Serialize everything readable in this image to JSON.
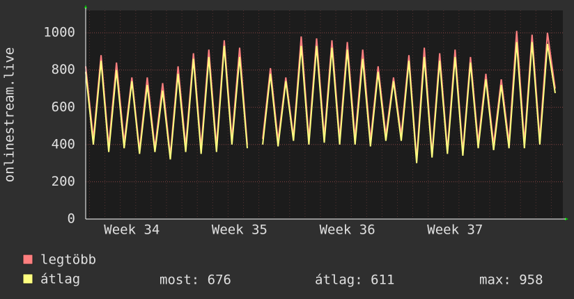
{
  "chart_data": {
    "type": "line",
    "y_label": "onlinestream.live",
    "categories": [
      null,
      null,
      null,
      null,
      null,
      null,
      "Week 34",
      null,
      null,
      null,
      null,
      null,
      null,
      null,
      null,
      null,
      null,
      null,
      null,
      null,
      "Week 35",
      null,
      null,
      null,
      null,
      null,
      null,
      null,
      null,
      null,
      null,
      null,
      null,
      null,
      "Week 36",
      null,
      null,
      null,
      null,
      null,
      null,
      null,
      null,
      null,
      null,
      null,
      null,
      null,
      "Week 37",
      null,
      null,
      null,
      null,
      null,
      null,
      null,
      null,
      null,
      null,
      null,
      null,
      null
    ],
    "series": [
      {
        "name": "legtöbb",
        "color": "#ff7f7f",
        "values": [
          820,
          430,
          880,
          390,
          840,
          410,
          760,
          370,
          760,
          380,
          730,
          340,
          820,
          390,
          890,
          380,
          910,
          390,
          960,
          430,
          920,
          400,
          null,
          430,
          810,
          420,
          760,
          440,
          980,
          430,
          970,
          440,
          960,
          430,
          950,
          430,
          910,
          420,
          820,
          450,
          760,
          450,
          880,
          320,
          920,
          350,
          890,
          370,
          910,
          360,
          870,
          410,
          780,
          400,
          750,
          410,
          1010,
          410,
          990,
          430,
          1000,
          700
        ]
      },
      {
        "name": "átlag",
        "color": "#ffff80",
        "values": [
          790,
          400,
          850,
          360,
          800,
          380,
          740,
          350,
          720,
          360,
          690,
          320,
          780,
          360,
          860,
          350,
          870,
          360,
          930,
          400,
          870,
          380,
          null,
          400,
          780,
          390,
          740,
          420,
          930,
          400,
          930,
          410,
          920,
          400,
          910,
          400,
          860,
          390,
          790,
          420,
          740,
          420,
          850,
          300,
          870,
          330,
          850,
          350,
          870,
          340,
          840,
          380,
          750,
          370,
          720,
          380,
          950,
          380,
          950,
          400,
          940,
          676
        ]
      }
    ],
    "ylim": [
      0,
      1120
    ],
    "yticks": [
      0,
      200,
      400,
      600,
      800,
      1000
    ],
    "grid": true,
    "stats": [
      "most: 676",
      "átlag: 611",
      "max: 958"
    ]
  }
}
